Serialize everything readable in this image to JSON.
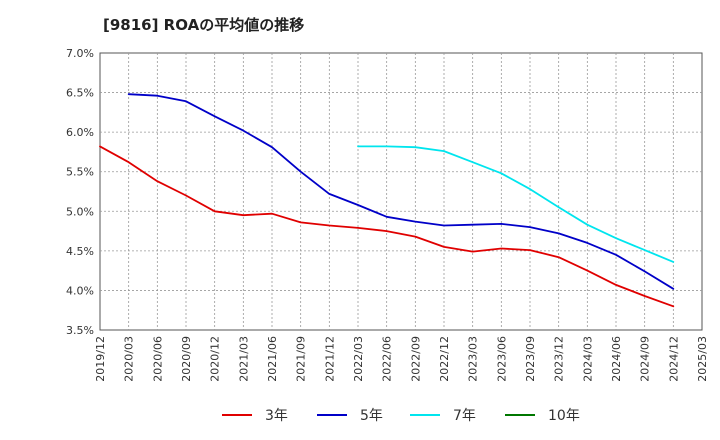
{
  "chart_data": {
    "type": "line",
    "title": "[9816]  ROAの平均値の推移",
    "xlabel": "",
    "ylabel": "",
    "ylim": [
      3.5,
      7.0
    ],
    "y_ticks": [
      "3.5%",
      "4.0%",
      "4.5%",
      "5.0%",
      "5.5%",
      "6.0%",
      "6.5%",
      "7.0%"
    ],
    "x_ticks": [
      "2019/12",
      "2020/03",
      "2020/06",
      "2020/09",
      "2020/12",
      "2021/03",
      "2021/06",
      "2021/09",
      "2021/12",
      "2022/03",
      "2022/06",
      "2022/09",
      "2022/12",
      "2023/03",
      "2023/06",
      "2023/09",
      "2023/12",
      "2024/03",
      "2024/06",
      "2024/09",
      "2024/12",
      "2025/03"
    ],
    "grid": true,
    "legend_position": "bottom",
    "series": [
      {
        "name": "3年",
        "color": "#e00000",
        "x": [
          "2019/12",
          "2020/03",
          "2020/06",
          "2020/09",
          "2020/12",
          "2021/03",
          "2021/06",
          "2021/09",
          "2021/12",
          "2022/03",
          "2022/06",
          "2022/09",
          "2022/12",
          "2023/03",
          "2023/06",
          "2023/09",
          "2023/12",
          "2024/03",
          "2024/06",
          "2024/09",
          "2024/12"
        ],
        "values": [
          5.82,
          5.62,
          5.38,
          5.2,
          5.0,
          4.95,
          4.97,
          4.86,
          4.82,
          4.79,
          4.75,
          4.68,
          4.55,
          4.49,
          4.53,
          4.51,
          4.42,
          4.25,
          4.07,
          3.93,
          3.8
        ]
      },
      {
        "name": "5年",
        "color": "#0000c8",
        "x": [
          "2020/03",
          "2020/06",
          "2020/09",
          "2020/12",
          "2021/03",
          "2021/06",
          "2021/09",
          "2021/12",
          "2022/03",
          "2022/06",
          "2022/09",
          "2022/12",
          "2023/03",
          "2023/06",
          "2023/09",
          "2023/12",
          "2024/03",
          "2024/06",
          "2024/09",
          "2024/12"
        ],
        "values": [
          6.48,
          6.46,
          6.39,
          6.2,
          6.02,
          5.81,
          5.5,
          5.22,
          5.08,
          4.93,
          4.87,
          4.82,
          4.83,
          4.84,
          4.8,
          4.72,
          4.6,
          4.45,
          4.24,
          4.02
        ]
      },
      {
        "name": "7年",
        "color": "#00e5ee",
        "x": [
          "2022/03",
          "2022/06",
          "2022/09",
          "2022/12",
          "2023/03",
          "2023/06",
          "2023/09",
          "2023/12",
          "2024/03",
          "2024/06",
          "2024/09",
          "2024/12"
        ],
        "values": [
          5.82,
          5.82,
          5.81,
          5.76,
          5.62,
          5.48,
          5.28,
          5.05,
          4.83,
          4.66,
          4.51,
          4.36
        ]
      },
      {
        "name": "10年",
        "color": "#007700",
        "x": [],
        "values": []
      }
    ]
  }
}
